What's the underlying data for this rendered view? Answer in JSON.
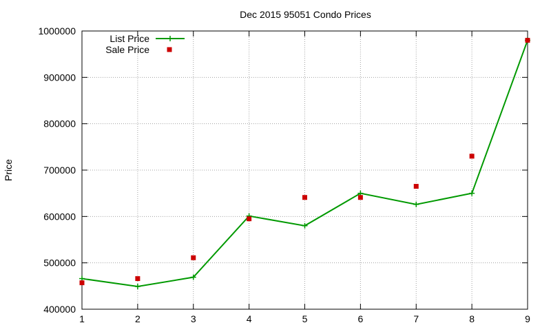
{
  "chart_data": {
    "type": "line",
    "title": "Dec 2015 95051 Condo Prices",
    "xlabel": "",
    "ylabel": "Price",
    "xlim": [
      1,
      9
    ],
    "ylim": [
      400000,
      1000000
    ],
    "x_ticks": [
      1,
      2,
      3,
      4,
      5,
      6,
      7,
      8,
      9
    ],
    "y_ticks": [
      400000,
      500000,
      600000,
      700000,
      800000,
      900000,
      1000000
    ],
    "grid": true,
    "legend_position": "top-left",
    "series": [
      {
        "name": "List Price",
        "style": "line-with-plus",
        "color": "#009900",
        "x": [
          1,
          2,
          3,
          4,
          5,
          6,
          7,
          8,
          9
        ],
        "values": [
          466000,
          449000,
          469000,
          601000,
          580000,
          650000,
          626000,
          650000,
          980000
        ]
      },
      {
        "name": "Sale Price",
        "style": "square-points",
        "color": "#cc0000",
        "x": [
          1,
          2,
          3,
          4,
          5,
          6,
          7,
          8,
          9
        ],
        "values": [
          457000,
          466000,
          511000,
          595000,
          641000,
          641000,
          665000,
          730000,
          980000
        ]
      }
    ]
  }
}
